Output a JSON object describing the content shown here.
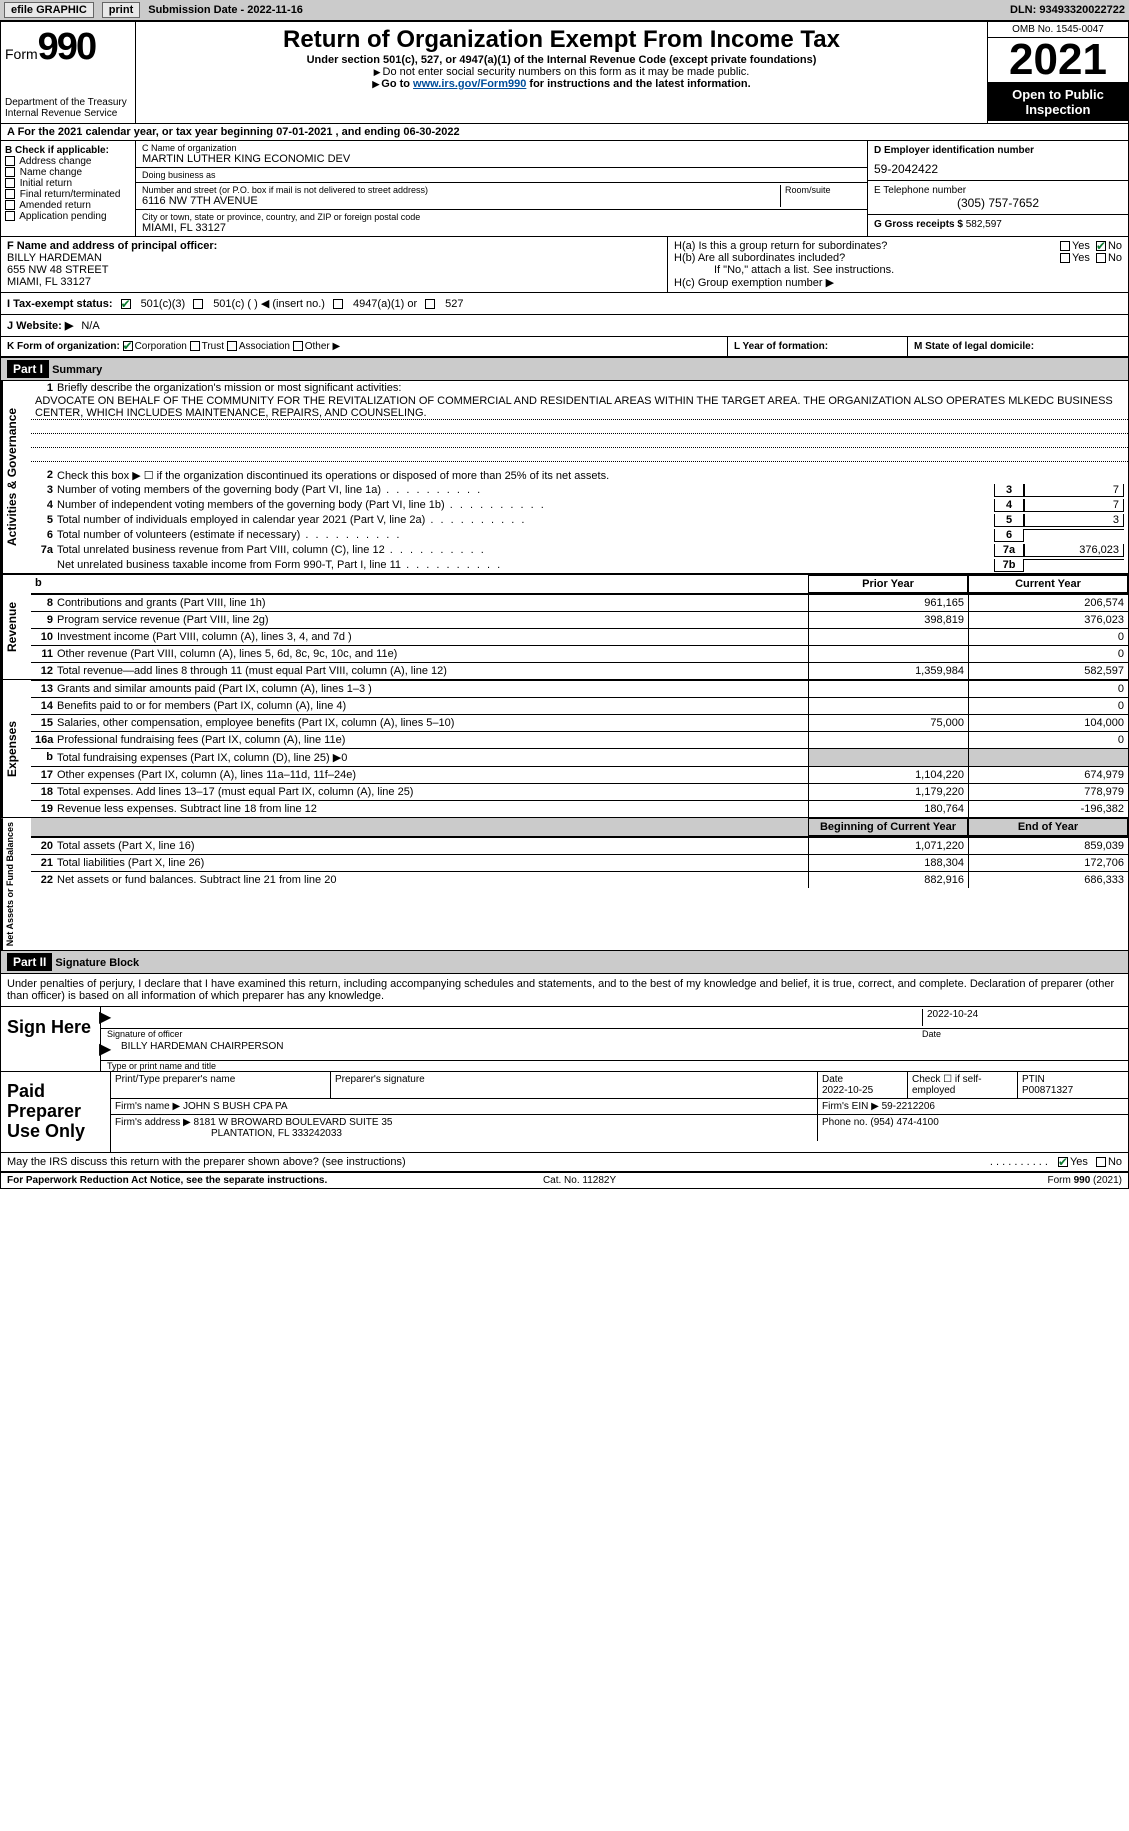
{
  "topbar": {
    "efile": "efile GRAPHIC",
    "print": "print",
    "submission": "Submission Date - 2022-11-16",
    "dln": "DLN: 93493320022722"
  },
  "header": {
    "form": "Form",
    "form_num": "990",
    "dept": "Department of the Treasury\nInternal Revenue Service",
    "title": "Return of Organization Exempt From Income Tax",
    "sub": "Under section 501(c), 527, or 4947(a)(1) of the Internal Revenue Code (except private foundations)",
    "sub2": "Do not enter social security numbers on this form as it may be made public.",
    "sub3_pre": "Go to ",
    "sub3_link": "www.irs.gov/Form990",
    "sub3_post": " for instructions and the latest information.",
    "omb": "OMB No. 1545-0047",
    "year": "2021",
    "open": "Open to Public Inspection"
  },
  "row_a": "A For the 2021 calendar year, or tax year beginning 07-01-2021    , and ending 06-30-2022",
  "col_b": {
    "label": "B Check if applicable:",
    "items": [
      "Address change",
      "Name change",
      "Initial return",
      "Final return/terminated",
      "Amended return",
      "Application pending"
    ]
  },
  "col_c": {
    "name_lbl": "C Name of organization",
    "name": "MARTIN LUTHER KING ECONOMIC DEV",
    "dba_lbl": "Doing business as",
    "dba": "",
    "addr_lbl": "Number and street (or P.O. box if mail is not delivered to street address)",
    "room_lbl": "Room/suite",
    "addr": "6116 NW 7TH AVENUE",
    "city_lbl": "City or town, state or province, country, and ZIP or foreign postal code",
    "city": "MIAMI, FL  33127"
  },
  "col_d": {
    "ein_lbl": "D Employer identification number",
    "ein": "59-2042422",
    "tel_lbl": "E Telephone number",
    "tel": "(305) 757-7652",
    "gross_lbl": "G Gross receipts $",
    "gross": "582,597"
  },
  "officer": {
    "lbl": "F Name and address of principal officer:",
    "name": "BILLY HARDEMAN",
    "addr1": "655 NW 48 STREET",
    "addr2": "MIAMI, FL  33127"
  },
  "h": {
    "a_lbl": "H(a)  Is this a group return for subordinates?",
    "b_lbl": "H(b)  Are all subordinates included?",
    "b_note": "If \"No,\" attach a list. See instructions.",
    "c_lbl": "H(c)  Group exemption number ▶",
    "yes": "Yes",
    "no": "No"
  },
  "status": {
    "lbl": "I   Tax-exempt status:",
    "o1": "501(c)(3)",
    "o2": "501(c) (  ) ◀ (insert no.)",
    "o3": "4947(a)(1) or",
    "o4": "527"
  },
  "website": {
    "lbl": "J  Website: ▶",
    "val": "N/A"
  },
  "korg": {
    "lbl": "K Form of organization:",
    "o1": "Corporation",
    "o2": "Trust",
    "o3": "Association",
    "o4": "Other ▶",
    "yof": "L Year of formation:",
    "state": "M State of legal domicile:"
  },
  "part1": {
    "hdr": "Part I",
    "title": "Summary",
    "line1": "Briefly describe the organization's mission or most significant activities:",
    "mission": "ADVOCATE ON BEHALF OF THE COMMUNITY FOR THE REVITALIZATION OF COMMERCIAL AND RESIDENTIAL AREAS WITHIN THE TARGET AREA. THE ORGANIZATION ALSO OPERATES MLKEDC BUSINESS CENTER, WHICH INCLUDES MAINTENANCE, REPAIRS, AND COUNSELING.",
    "line2": "Check this box ▶ ☐  if the organization discontinued its operations or disposed of more than 25% of its net assets.",
    "lines": [
      {
        "n": "3",
        "t": "Number of voting members of the governing body (Part VI, line 1a)",
        "box": "3",
        "v": "7"
      },
      {
        "n": "4",
        "t": "Number of independent voting members of the governing body (Part VI, line 1b)",
        "box": "4",
        "v": "7"
      },
      {
        "n": "5",
        "t": "Total number of individuals employed in calendar year 2021 (Part V, line 2a)",
        "box": "5",
        "v": "3"
      },
      {
        "n": "6",
        "t": "Total number of volunteers (estimate if necessary)",
        "box": "6",
        "v": ""
      },
      {
        "n": "7a",
        "t": "Total unrelated business revenue from Part VIII, column (C), line 12",
        "box": "7a",
        "v": "376,023"
      },
      {
        "n": "",
        "t": "Net unrelated business taxable income from Form 990-T, Part I, line 11",
        "box": "7b",
        "v": ""
      }
    ],
    "prior": "Prior Year",
    "current": "Current Year",
    "rev": [
      {
        "n": "8",
        "t": "Contributions and grants (Part VIII, line 1h)",
        "p": "961,165",
        "c": "206,574"
      },
      {
        "n": "9",
        "t": "Program service revenue (Part VIII, line 2g)",
        "p": "398,819",
        "c": "376,023"
      },
      {
        "n": "10",
        "t": "Investment income (Part VIII, column (A), lines 3, 4, and 7d )",
        "p": "",
        "c": "0"
      },
      {
        "n": "11",
        "t": "Other revenue (Part VIII, column (A), lines 5, 6d, 8c, 9c, 10c, and 11e)",
        "p": "",
        "c": "0"
      },
      {
        "n": "12",
        "t": "Total revenue—add lines 8 through 11 (must equal Part VIII, column (A), line 12)",
        "p": "1,359,984",
        "c": "582,597"
      }
    ],
    "exp": [
      {
        "n": "13",
        "t": "Grants and similar amounts paid (Part IX, column (A), lines 1–3 )",
        "p": "",
        "c": "0"
      },
      {
        "n": "14",
        "t": "Benefits paid to or for members (Part IX, column (A), line 4)",
        "p": "",
        "c": "0"
      },
      {
        "n": "15",
        "t": "Salaries, other compensation, employee benefits (Part IX, column (A), lines 5–10)",
        "p": "75,000",
        "c": "104,000"
      },
      {
        "n": "16a",
        "t": "Professional fundraising fees (Part IX, column (A), line 11e)",
        "p": "",
        "c": "0"
      },
      {
        "n": "b",
        "t": "Total fundraising expenses (Part IX, column (D), line 25) ▶0",
        "p": "",
        "c": "",
        "shaded": true
      },
      {
        "n": "17",
        "t": "Other expenses (Part IX, column (A), lines 11a–11d, 11f–24e)",
        "p": "1,104,220",
        "c": "674,979"
      },
      {
        "n": "18",
        "t": "Total expenses. Add lines 13–17 (must equal Part IX, column (A), line 25)",
        "p": "1,179,220",
        "c": "778,979"
      },
      {
        "n": "19",
        "t": "Revenue less expenses. Subtract line 18 from line 12",
        "p": "180,764",
        "c": "-196,382"
      }
    ],
    "begin": "Beginning of Current Year",
    "end": "End of Year",
    "net": [
      {
        "n": "20",
        "t": "Total assets (Part X, line 16)",
        "p": "1,071,220",
        "c": "859,039"
      },
      {
        "n": "21",
        "t": "Total liabilities (Part X, line 26)",
        "p": "188,304",
        "c": "172,706"
      },
      {
        "n": "22",
        "t": "Net assets or fund balances. Subtract line 21 from line 20",
        "p": "882,916",
        "c": "686,333"
      }
    ],
    "vtab_ag": "Activities & Governance",
    "vtab_rev": "Revenue",
    "vtab_exp": "Expenses",
    "vtab_net": "Net Assets or Fund Balances"
  },
  "part2": {
    "hdr": "Part II",
    "title": "Signature Block",
    "decl": "Under penalties of perjury, I declare that I have examined this return, including accompanying schedules and statements, and to the best of my knowledge and belief, it is true, correct, and complete. Declaration of preparer (other than officer) is based on all information of which preparer has any knowledge.",
    "sign_here": "Sign Here",
    "sig_officer": "Signature of officer",
    "sig_date": "2022-10-24",
    "sig_date_lbl": "Date",
    "officer_name": "BILLY HARDEMAN  CHAIRPERSON",
    "type_name": "Type or print name and title",
    "paid": "Paid Preparer Use Only",
    "prep_name_lbl": "Print/Type preparer's name",
    "prep_sig_lbl": "Preparer's signature",
    "prep_date_lbl": "Date",
    "prep_date": "2022-10-25",
    "check_self": "Check ☐ if self-employed",
    "ptin_lbl": "PTIN",
    "ptin": "P00871327",
    "firm_name_lbl": "Firm's name    ▶",
    "firm_name": "JOHN S BUSH CPA PA",
    "firm_ein_lbl": "Firm's EIN ▶",
    "firm_ein": "59-2212206",
    "firm_addr_lbl": "Firm's address ▶",
    "firm_addr1": "8181 W BROWARD BOULEVARD SUITE 35",
    "firm_addr2": "PLANTATION, FL  333242033",
    "phone_lbl": "Phone no.",
    "phone": "(954) 474-4100",
    "discuss": "May the IRS discuss this return with the preparer shown above? (see instructions)",
    "yes": "Yes",
    "no": "No"
  },
  "footer": {
    "pra": "For Paperwork Reduction Act Notice, see the separate instructions.",
    "cat": "Cat. No. 11282Y",
    "form": "Form 990 (2021)"
  }
}
